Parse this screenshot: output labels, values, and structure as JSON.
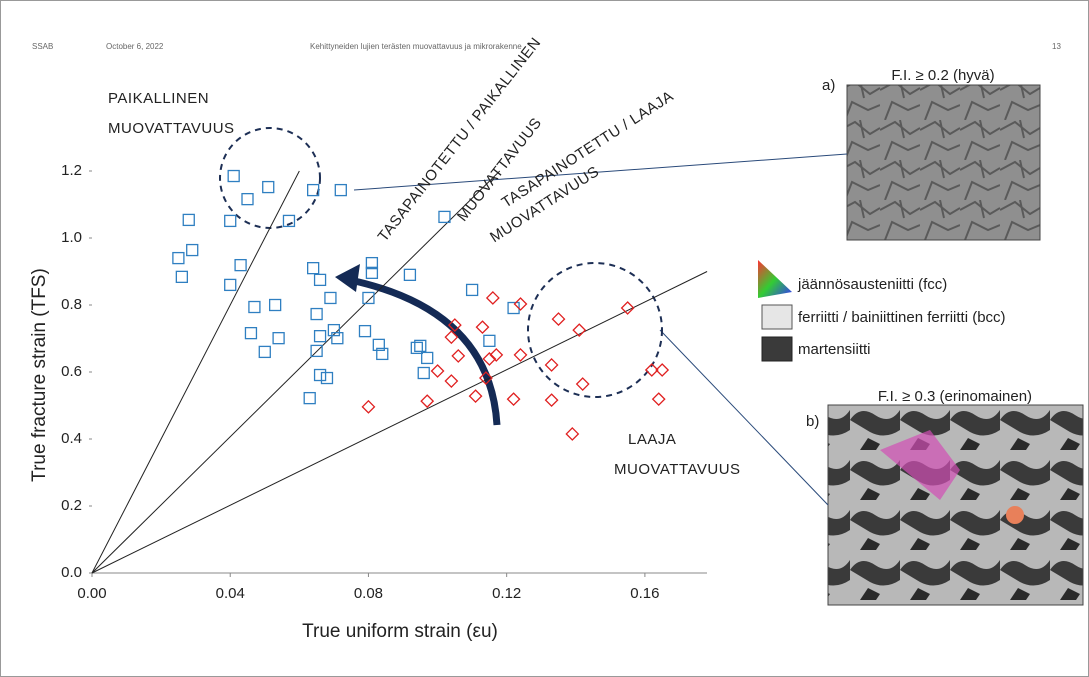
{
  "header": {
    "company": "SSAB",
    "date": "October 6, 2022",
    "title": "Kehittyneiden lujien terästen muovattavuus ja mikrorakenne",
    "page": "13"
  },
  "images": [
    {
      "title": "F.I. ≥ 0.2 (hyvä)",
      "label": "a)"
    },
    {
      "title": "F.I. ≥ 0.3 (erinomainen)",
      "label": "b)"
    }
  ],
  "legend": [
    "jäännösausteniitti (fcc)",
    "ferriitti / bainiittinen ferriitti (bcc)",
    "martensiitti"
  ],
  "chart_data": {
    "type": "scatter",
    "xlabel": "True uniform strain (εu)",
    "ylabel": "True fracture strain (TFS)",
    "xlim": [
      0,
      0.18
    ],
    "ylim": [
      0,
      1.2
    ],
    "xticks": [
      {
        "value": 0,
        "label": "0.00"
      },
      {
        "value": 0.04,
        "label": "0.04"
      },
      {
        "value": 0.08,
        "label": "0.08"
      },
      {
        "value": 0.12,
        "label": "0.12"
      },
      {
        "value": 0.16,
        "label": "0.16"
      }
    ],
    "yticks": [
      {
        "value": 0,
        "label": "0.0"
      },
      0.2,
      0.4,
      0.6,
      0.8,
      {
        "value": 1,
        "label": "1.0"
      },
      1.2
    ],
    "series": [
      {
        "color": "#2f7fc1",
        "marker": "square",
        "x": [
          0.041,
          0.051,
          0.045,
          0.064,
          0.072,
          0.028,
          0.04,
          0.057,
          0.102,
          0.029,
          0.025,
          0.026,
          0.043,
          0.04,
          0.064,
          0.066,
          0.081,
          0.081,
          0.092,
          0.069,
          0.08,
          0.11,
          0.047,
          0.053,
          0.065,
          0.122,
          0.046,
          0.07,
          0.066,
          0.071,
          0.079,
          0.083,
          0.084,
          0.054,
          0.05,
          0.065,
          0.094,
          0.095,
          0.115,
          0.066,
          0.068,
          0.097,
          0.096,
          0.063
        ],
        "values": [
          1.185,
          1.152,
          1.116,
          1.143,
          1.143,
          1.054,
          1.051,
          1.051,
          1.063,
          0.964,
          0.94,
          0.884,
          0.919,
          0.86,
          0.91,
          0.875,
          0.925,
          0.896,
          0.89,
          0.821,
          0.821,
          0.845,
          0.794,
          0.8,
          0.773,
          0.791,
          0.716,
          0.725,
          0.707,
          0.701,
          0.722,
          0.681,
          0.654,
          0.701,
          0.66,
          0.663,
          0.672,
          0.678,
          0.693,
          0.591,
          0.582,
          0.642,
          0.597,
          0.522
        ]
      },
      {
        "color": "#e02020",
        "marker": "diamond",
        "x": [
          0.116,
          0.124,
          0.105,
          0.113,
          0.104,
          0.135,
          0.141,
          0.155,
          0.106,
          0.115,
          0.117,
          0.124,
          0.1,
          0.104,
          0.114,
          0.133,
          0.142,
          0.111,
          0.122,
          0.097,
          0.08,
          0.133,
          0.139,
          0.162,
          0.165,
          0.164
        ],
        "values": [
          0.821,
          0.803,
          0.74,
          0.734,
          0.704,
          0.758,
          0.725,
          0.791,
          0.648,
          0.639,
          0.651,
          0.651,
          0.603,
          0.573,
          0.582,
          0.621,
          0.564,
          0.528,
          0.519,
          0.513,
          0.496,
          0.516,
          0.415,
          0.606,
          0.606,
          0.519
        ]
      }
    ],
    "reference_lines": [
      {
        "x": [
          0,
          0.06
        ],
        "y": [
          0,
          1.2
        ]
      },
      {
        "x": [
          0,
          0.118
        ],
        "y": [
          0,
          1.2
        ]
      },
      {
        "x": [
          0,
          0.178
        ],
        "y": [
          0,
          0.9
        ]
      }
    ],
    "annotations": [
      "PAIKALLINEN",
      "MUOVATTAVUUS",
      "TASAPAINOTETTU / PAIKALLINEN",
      "MUOVATTAVUUS",
      "TASAPAINOTETTU / LAAJA",
      "MUOVATTAVUUS",
      "LAAJA",
      "MUOVATTAVUUS"
    ]
  }
}
